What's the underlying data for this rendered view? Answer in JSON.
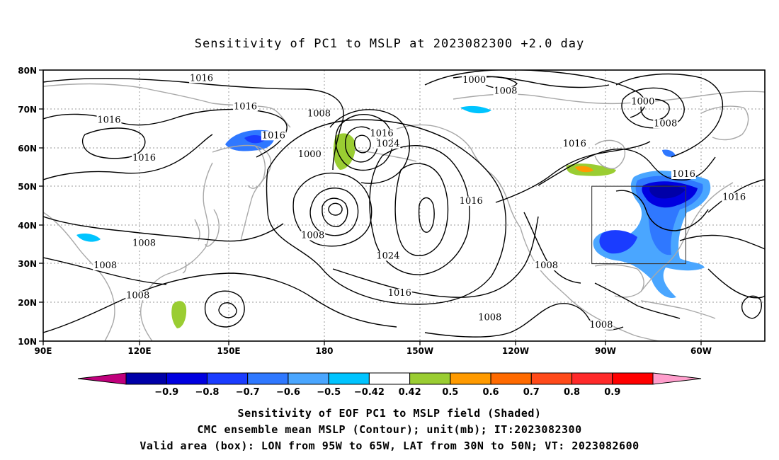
{
  "title": "Sensitivity of PC1 to MSLP at 2023082300 +2.0 day",
  "lat_labels": [
    "80N",
    "70N",
    "60N",
    "50N",
    "40N",
    "30N",
    "20N",
    "10N"
  ],
  "lon_labels": [
    "90E",
    "120E",
    "150E",
    "180",
    "150W",
    "120W",
    "90W",
    "60W"
  ],
  "contour_labels": [
    {
      "text": "1016",
      "lon": 140.5,
      "lat": 77.2
    },
    {
      "text": "1000",
      "lon": 227.5,
      "lat": 76.7
    },
    {
      "text": "1008",
      "lon": 237.5,
      "lat": 73.9
    },
    {
      "text": "1000",
      "lon": 281.3,
      "lat": 71.1
    },
    {
      "text": "1016",
      "lon": 154.5,
      "lat": 69.9
    },
    {
      "text": "1016",
      "lon": 111.0,
      "lat": 66.4
    },
    {
      "text": "1008",
      "lon": 178.0,
      "lat": 68.0
    },
    {
      "text": "1008",
      "lon": 288.5,
      "lat": 65.5
    },
    {
      "text": "1016",
      "lon": 198.0,
      "lat": 62.9
    },
    {
      "text": "1016",
      "lon": 163.5,
      "lat": 62.4
    },
    {
      "text": "1024",
      "lon": 200.0,
      "lat": 60.3
    },
    {
      "text": "1016",
      "lon": 259.5,
      "lat": 60.3
    },
    {
      "text": "1000",
      "lon": 175.0,
      "lat": 57.5
    },
    {
      "text": "1016",
      "lon": 122.2,
      "lat": 56.6
    },
    {
      "text": "1016",
      "lon": 294.3,
      "lat": 52.4
    },
    {
      "text": "1016",
      "lon": 310.4,
      "lat": 46.5
    },
    {
      "text": "1016",
      "lon": 226.5,
      "lat": 45.5
    },
    {
      "text": "1008",
      "lon": 122.2,
      "lat": 34.6
    },
    {
      "text": "1008",
      "lon": 176.0,
      "lat": 36.6
    },
    {
      "text": "1024",
      "lon": 200.0,
      "lat": 31.3
    },
    {
      "text": "1008",
      "lon": 109.8,
      "lat": 28.8
    },
    {
      "text": "1008",
      "lon": 250.5,
      "lat": 28.8
    },
    {
      "text": "1016",
      "lon": 203.7,
      "lat": 21.7
    },
    {
      "text": "1008",
      "lon": 120.2,
      "lat": 21.1
    },
    {
      "text": "1008",
      "lon": 232.5,
      "lat": 15.4
    },
    {
      "text": "1008",
      "lon": 268.0,
      "lat": 13.5
    }
  ],
  "valid_box": {
    "lon_min": 265,
    "lon_max": 295,
    "lat_min": 30,
    "lat_max": 50
  },
  "colorbar": {
    "labels": [
      "−0.9",
      "−0.8",
      "−0.7",
      "−0.6",
      "−0.5",
      "−0.42",
      "0.42",
      "0.5",
      "0.6",
      "0.7",
      "0.8",
      "0.9"
    ],
    "colors": [
      "#c0007c",
      "#0000a8",
      "#0000e0",
      "#1a3cff",
      "#2f78ff",
      "#4aa6ff",
      "#00c4ff",
      "#ffffff",
      "#9acd32",
      "#ff9a00",
      "#ff6a00",
      "#ff4a1a",
      "#ff2a2a",
      "#ff0000",
      "#ff9ecc"
    ]
  },
  "captions": [
    "Sensitivity of EOF PC1 to MSLP field (Shaded)",
    "CMC ensemble mean MSLP (Contour); unit(mb); IT:2023082300",
    "Valid area (box): LON from 95W to 65W, LAT from 30N to 50N; VT: 2023082600"
  ]
}
